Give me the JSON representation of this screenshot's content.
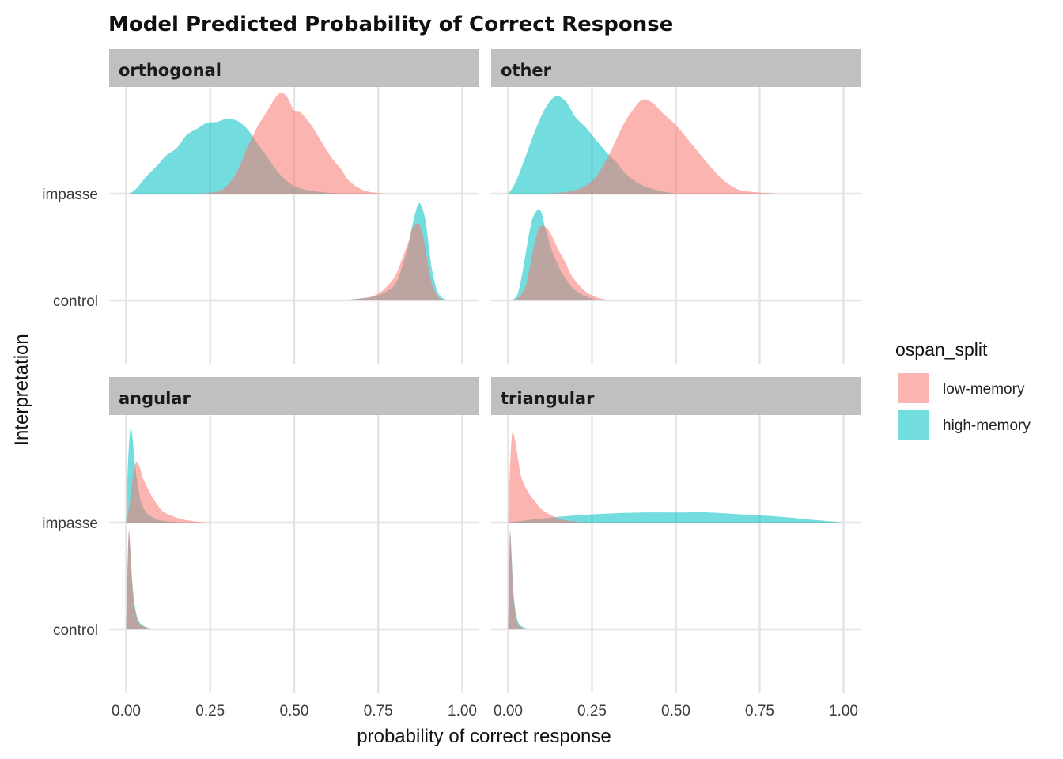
{
  "chart_data": {
    "type": "ridgeline-density",
    "title": "Model Predicted Probability of Correct Response",
    "xlabel": "probability of correct response",
    "ylabel": "Interpretation",
    "xlim": [
      0,
      1
    ],
    "x_ticks": [
      "0.00",
      "0.25",
      "0.50",
      "0.75",
      "1.00"
    ],
    "x_tick_values": [
      0,
      0.25,
      0.5,
      0.75,
      1.0
    ],
    "y_categories": [
      "impasse",
      "control"
    ],
    "legend": {
      "title": "ospan_split",
      "placement": "right",
      "entries": [
        {
          "name": "low-memory",
          "color": "#f8766d"
        },
        {
          "name": "high-memory",
          "color": "#00bfc4"
        }
      ]
    },
    "opacity": 0.55,
    "grid": true,
    "panels": [
      {
        "name": "orthogonal",
        "ridges": [
          {
            "category": "impasse",
            "group": "high-memory",
            "x": [
              0.01,
              0.03,
              0.06,
              0.09,
              0.12,
              0.15,
              0.18,
              0.21,
              0.24,
              0.27,
              0.3,
              0.33,
              0.36,
              0.39,
              0.42,
              0.45,
              0.48,
              0.51,
              0.55,
              0.6,
              0.65
            ],
            "density": [
              0.0,
              0.05,
              0.17,
              0.27,
              0.38,
              0.45,
              0.58,
              0.64,
              0.7,
              0.71,
              0.74,
              0.72,
              0.64,
              0.5,
              0.36,
              0.22,
              0.12,
              0.06,
              0.03,
              0.01,
              0.0
            ]
          },
          {
            "category": "impasse",
            "group": "low-memory",
            "x": [
              0.22,
              0.27,
              0.3,
              0.33,
              0.36,
              0.39,
              0.42,
              0.44,
              0.46,
              0.48,
              0.5,
              0.52,
              0.55,
              0.58,
              0.61,
              0.64,
              0.66,
              0.69,
              0.72,
              0.77
            ],
            "density": [
              0.0,
              0.02,
              0.08,
              0.22,
              0.45,
              0.66,
              0.82,
              0.93,
              1.0,
              0.95,
              0.82,
              0.8,
              0.68,
              0.52,
              0.36,
              0.24,
              0.14,
              0.06,
              0.02,
              0.0
            ]
          },
          {
            "category": "control",
            "group": "high-memory",
            "x": [
              0.64,
              0.7,
              0.74,
              0.77,
              0.8,
              0.82,
              0.84,
              0.85,
              0.86,
              0.87,
              0.88,
              0.89,
              0.9,
              0.91,
              0.93,
              0.96
            ],
            "density": [
              0.0,
              0.02,
              0.04,
              0.08,
              0.16,
              0.32,
              0.55,
              0.72,
              0.86,
              0.96,
              0.92,
              0.8,
              0.55,
              0.3,
              0.06,
              0.0
            ]
          },
          {
            "category": "control",
            "group": "low-memory",
            "x": [
              0.64,
              0.7,
              0.74,
              0.77,
              0.8,
              0.82,
              0.84,
              0.85,
              0.86,
              0.87,
              0.88,
              0.89,
              0.9,
              0.91,
              0.93,
              0.96
            ],
            "density": [
              0.0,
              0.02,
              0.05,
              0.12,
              0.24,
              0.4,
              0.58,
              0.7,
              0.75,
              0.76,
              0.68,
              0.52,
              0.32,
              0.16,
              0.03,
              0.0
            ]
          }
        ]
      },
      {
        "name": "other",
        "ridges": [
          {
            "category": "impasse",
            "group": "high-memory",
            "x": [
              0.0,
              0.02,
              0.05,
              0.08,
              0.11,
              0.14,
              0.17,
              0.2,
              0.23,
              0.26,
              0.29,
              0.32,
              0.35,
              0.38,
              0.41,
              0.45,
              0.5
            ],
            "density": [
              0.0,
              0.1,
              0.35,
              0.62,
              0.84,
              0.96,
              0.92,
              0.76,
              0.66,
              0.54,
              0.42,
              0.32,
              0.2,
              0.12,
              0.07,
              0.03,
              0.0
            ]
          },
          {
            "category": "impasse",
            "group": "low-memory",
            "x": [
              0.12,
              0.18,
              0.22,
              0.26,
              0.3,
              0.34,
              0.37,
              0.4,
              0.43,
              0.46,
              0.5,
              0.53,
              0.56,
              0.6,
              0.64,
              0.68,
              0.72,
              0.8
            ],
            "density": [
              0.0,
              0.02,
              0.06,
              0.16,
              0.38,
              0.66,
              0.82,
              0.93,
              0.9,
              0.8,
              0.68,
              0.56,
              0.44,
              0.28,
              0.14,
              0.05,
              0.02,
              0.0
            ]
          },
          {
            "category": "control",
            "group": "high-memory",
            "x": [
              0.01,
              0.03,
              0.05,
              0.07,
              0.09,
              0.1,
              0.11,
              0.13,
              0.15,
              0.17,
              0.2,
              0.24,
              0.28
            ],
            "density": [
              0.0,
              0.08,
              0.42,
              0.78,
              0.9,
              0.86,
              0.72,
              0.5,
              0.34,
              0.22,
              0.1,
              0.03,
              0.0
            ]
          },
          {
            "category": "control",
            "group": "low-memory",
            "x": [
              0.02,
              0.05,
              0.07,
              0.09,
              0.11,
              0.13,
              0.15,
              0.17,
              0.19,
              0.22,
              0.25,
              0.29,
              0.35
            ],
            "density": [
              0.0,
              0.12,
              0.42,
              0.7,
              0.73,
              0.64,
              0.5,
              0.38,
              0.24,
              0.12,
              0.05,
              0.01,
              0.0
            ]
          }
        ]
      },
      {
        "name": "angular",
        "ridges": [
          {
            "category": "impasse",
            "group": "high-memory",
            "x": [
              0.0,
              0.005,
              0.012,
              0.018,
              0.025,
              0.035,
              0.045,
              0.06,
              0.08,
              0.1,
              0.13,
              0.17
            ],
            "density": [
              0.0,
              0.55,
              0.92,
              0.86,
              0.62,
              0.36,
              0.2,
              0.1,
              0.05,
              0.02,
              0.01,
              0.0
            ]
          },
          {
            "category": "impasse",
            "group": "low-memory",
            "x": [
              0.0,
              0.01,
              0.02,
              0.03,
              0.04,
              0.05,
              0.07,
              0.09,
              0.11,
              0.14,
              0.17,
              0.21,
              0.25
            ],
            "density": [
              0.0,
              0.18,
              0.45,
              0.6,
              0.55,
              0.44,
              0.3,
              0.19,
              0.11,
              0.06,
              0.03,
              0.01,
              0.0
            ]
          },
          {
            "category": "control",
            "group": "high-memory",
            "x": [
              0.0,
              0.004,
              0.008,
              0.012,
              0.018,
              0.025,
              0.035,
              0.05,
              0.07,
              0.1
            ],
            "density": [
              0.0,
              0.55,
              0.95,
              0.82,
              0.48,
              0.25,
              0.1,
              0.04,
              0.01,
              0.0
            ]
          },
          {
            "category": "control",
            "group": "low-memory",
            "x": [
              0.0,
              0.004,
              0.008,
              0.012,
              0.018,
              0.025,
              0.035,
              0.05,
              0.07,
              0.1
            ],
            "density": [
              0.0,
              0.62,
              0.98,
              0.8,
              0.45,
              0.22,
              0.08,
              0.03,
              0.01,
              0.0
            ]
          }
        ]
      },
      {
        "name": "triangular",
        "ridges": [
          {
            "category": "impasse",
            "group": "high-memory",
            "x": [
              0.0,
              0.05,
              0.1,
              0.2,
              0.3,
              0.4,
              0.5,
              0.6,
              0.7,
              0.8,
              0.9,
              0.97,
              1.0
            ],
            "density": [
              0.0,
              0.02,
              0.04,
              0.07,
              0.09,
              0.1,
              0.1,
              0.1,
              0.08,
              0.06,
              0.03,
              0.01,
              0.0
            ]
          },
          {
            "category": "impasse",
            "group": "low-memory",
            "x": [
              0.0,
              0.005,
              0.012,
              0.02,
              0.03,
              0.04,
              0.06,
              0.08,
              0.1,
              0.13,
              0.16,
              0.2,
              0.25
            ],
            "density": [
              0.0,
              0.5,
              0.88,
              0.82,
              0.62,
              0.44,
              0.3,
              0.21,
              0.13,
              0.07,
              0.03,
              0.01,
              0.0
            ]
          },
          {
            "category": "control",
            "group": "high-memory",
            "x": [
              0.0,
              0.003,
              0.006,
              0.01,
              0.015,
              0.022,
              0.03,
              0.045,
              0.07
            ],
            "density": [
              0.0,
              0.55,
              0.95,
              0.75,
              0.4,
              0.18,
              0.07,
              0.02,
              0.0
            ]
          },
          {
            "category": "control",
            "group": "low-memory",
            "x": [
              0.0,
              0.003,
              0.006,
              0.01,
              0.015,
              0.022,
              0.03,
              0.045,
              0.07
            ],
            "density": [
              0.0,
              0.6,
              0.98,
              0.72,
              0.36,
              0.15,
              0.05,
              0.01,
              0.0
            ]
          }
        ]
      }
    ]
  }
}
